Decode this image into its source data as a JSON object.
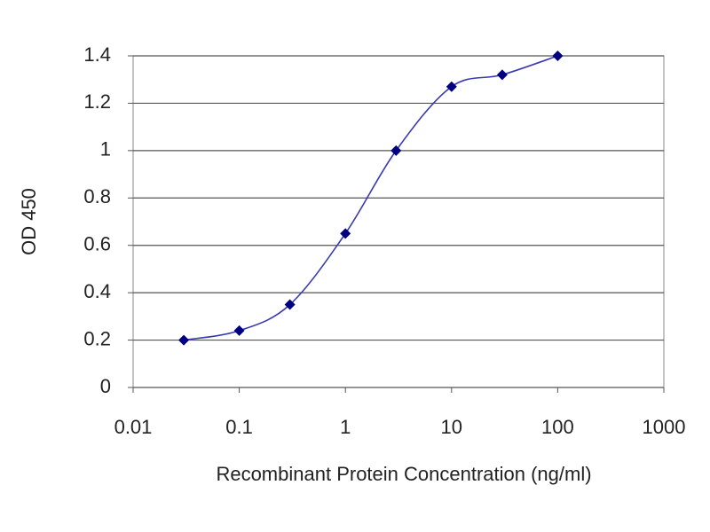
{
  "chart_data": {
    "type": "line",
    "xlabel": "Recombinant Protein Concentration (ng/ml)",
    "ylabel": "OD 450",
    "xscale": "log",
    "x": [
      0.03,
      0.1,
      0.3,
      1,
      3,
      10,
      30,
      100
    ],
    "series": [
      {
        "color": "#3a3ab0",
        "marker_color": "#000080",
        "values": [
          0.2,
          0.24,
          0.35,
          0.65,
          1.0,
          1.27,
          1.32,
          1.4
        ]
      }
    ],
    "xlim": [
      0.01,
      1000
    ],
    "xticks": [
      0.01,
      0.1,
      1,
      10,
      100,
      1000
    ],
    "ylim": [
      0,
      1.4
    ],
    "yticks": [
      0,
      0.2,
      0.4,
      0.6,
      0.8,
      1,
      1.2,
      1.4
    ],
    "grid": true
  }
}
